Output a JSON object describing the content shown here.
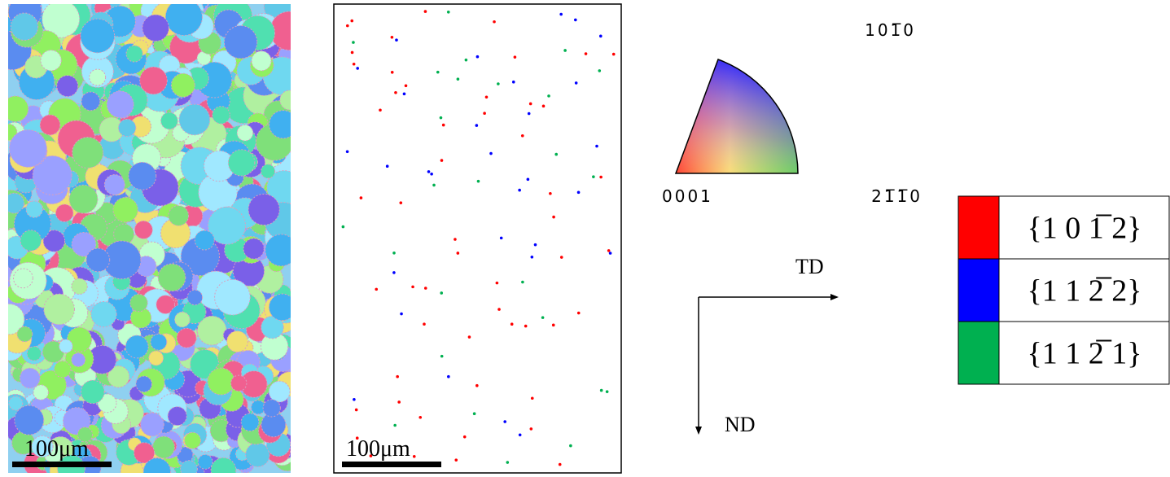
{
  "scale_bars": [
    "100μm",
    "100μm"
  ],
  "ipf_key": {
    "top": "101̅0",
    "origin": "0001",
    "right": "21̅1̅0"
  },
  "axes": {
    "horizontal": "TD",
    "vertical": "ND"
  },
  "legend": [
    {
      "label": "{1 0 1̅ 2}",
      "color": "#ff0000"
    },
    {
      "label": "{1 1 2̅ 2}",
      "color": "#0000ff"
    },
    {
      "label": "{1 1 2̅ 1}",
      "color": "#00b050"
    }
  ]
}
